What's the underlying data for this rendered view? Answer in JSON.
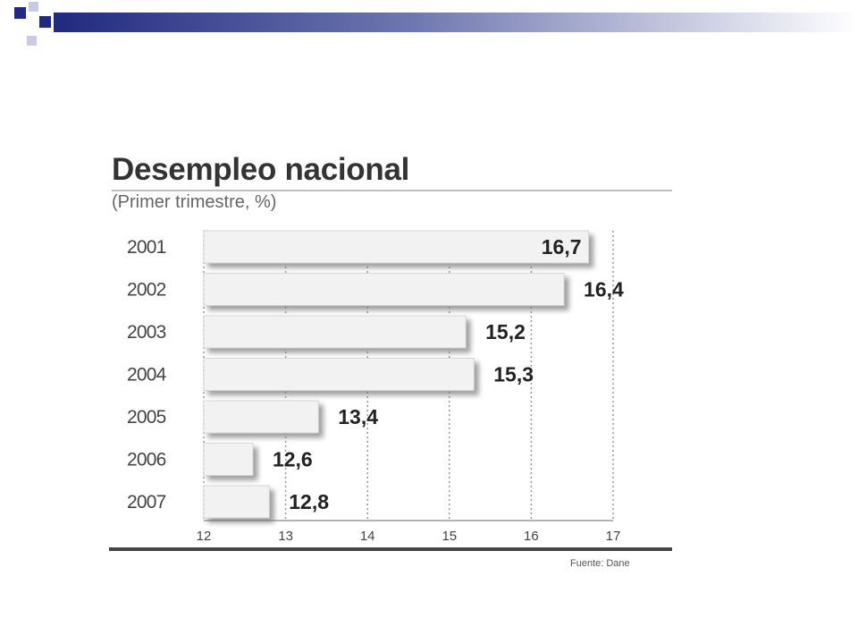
{
  "colors": {
    "band_dark": "#1f2a80",
    "band_light": "#ffffff",
    "square_light": "#c9cbe3",
    "bar_fill": "#f2f2f2",
    "bar_shadow": "#9a9a9a",
    "grid": "#9a9a9a"
  },
  "chart_data": {
    "type": "bar",
    "orientation": "horizontal",
    "title": "Desempleo nacional",
    "subtitle": "(Primer trimestre, %)",
    "categories": [
      "2001",
      "2002",
      "2003",
      "2004",
      "2005",
      "2006",
      "2007"
    ],
    "values": [
      16.7,
      16.4,
      15.2,
      15.3,
      13.4,
      12.6,
      12.8
    ],
    "value_labels": [
      "16,7",
      "16,4",
      "15,2",
      "15,3",
      "13,4",
      "12,6",
      "12,8"
    ],
    "xlim": [
      12,
      17
    ],
    "xticks": [
      12,
      13,
      14,
      15,
      16,
      17
    ],
    "grid": true,
    "source": "Fuente: Dane"
  }
}
